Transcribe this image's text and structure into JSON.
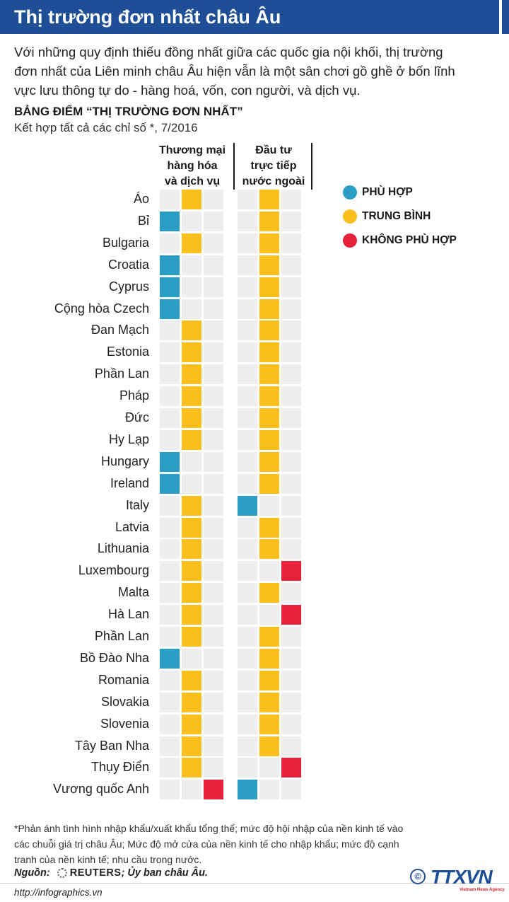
{
  "title": "Thị trường đơn nhất châu Âu",
  "intro": "Với những quy định thiếu đồng nhất giữa các quốc gia nội khối, thị trường đơn nhất của Liên minh châu Âu hiện vẫn là một sân chơi gồ ghề ở bốn lĩnh vực lưu thông tự do - hàng hoá, vốn, con người, và dịch vụ.",
  "chart_data": {
    "type": "table",
    "title": "BẢNG ĐIỂM “THỊ TRƯỜNG ĐƠN NHẤT”",
    "subtitle": "Kết hợp tất cả các chỉ số *, 7/2016",
    "columns": [
      {
        "label_lines": [
          "Thương mại",
          "hàng hóa",
          "và dịch vụ"
        ]
      },
      {
        "label_lines": [
          "Đầu tư",
          "trực tiếp",
          "nước ngoài"
        ]
      }
    ],
    "categories_scale": [
      "PHÙ HỢP",
      "TRUNG BÌNH",
      "KHÔNG PHÙ HỢP"
    ],
    "rows": [
      {
        "country": "Áo",
        "trade": "TRUNG BÌNH",
        "fdi": "TRUNG BÌNH"
      },
      {
        "country": "Bỉ",
        "trade": "PHÙ HỢP",
        "fdi": "TRUNG BÌNH"
      },
      {
        "country": "Bulgaria",
        "trade": "TRUNG BÌNH",
        "fdi": "TRUNG BÌNH"
      },
      {
        "country": "Croatia",
        "trade": "PHÙ HỢP",
        "fdi": "TRUNG BÌNH"
      },
      {
        "country": "Cyprus",
        "trade": "PHÙ HỢP",
        "fdi": "TRUNG BÌNH"
      },
      {
        "country": "Cộng hòa Czech",
        "trade": "PHÙ HỢP",
        "fdi": "TRUNG BÌNH"
      },
      {
        "country": "Đan Mạch",
        "trade": "TRUNG BÌNH",
        "fdi": "TRUNG BÌNH"
      },
      {
        "country": "Estonia",
        "trade": "TRUNG BÌNH",
        "fdi": "TRUNG BÌNH"
      },
      {
        "country": "Phần Lan",
        "trade": "TRUNG BÌNH",
        "fdi": "TRUNG BÌNH"
      },
      {
        "country": "Pháp",
        "trade": "TRUNG BÌNH",
        "fdi": "TRUNG BÌNH"
      },
      {
        "country": "Đức",
        "trade": "TRUNG BÌNH",
        "fdi": "TRUNG BÌNH"
      },
      {
        "country": "Hy Lạp",
        "trade": "TRUNG BÌNH",
        "fdi": "TRUNG BÌNH"
      },
      {
        "country": "Hungary",
        "trade": "PHÙ HỢP",
        "fdi": "TRUNG BÌNH"
      },
      {
        "country": "Ireland",
        "trade": "PHÙ HỢP",
        "fdi": "TRUNG BÌNH"
      },
      {
        "country": "Italy",
        "trade": "TRUNG BÌNH",
        "fdi": "PHÙ HỢP"
      },
      {
        "country": "Latvia",
        "trade": "TRUNG BÌNH",
        "fdi": "TRUNG BÌNH"
      },
      {
        "country": "Lithuania",
        "trade": "TRUNG BÌNH",
        "fdi": "TRUNG BÌNH"
      },
      {
        "country": "Luxembourg",
        "trade": "TRUNG BÌNH",
        "fdi": "KHÔNG PHÙ HỢP"
      },
      {
        "country": "Malta",
        "trade": "TRUNG BÌNH",
        "fdi": "TRUNG BÌNH"
      },
      {
        "country": "Hà Lan",
        "trade": "TRUNG BÌNH",
        "fdi": "KHÔNG PHÙ HỢP"
      },
      {
        "country": "Phần Lan",
        "trade": "TRUNG BÌNH",
        "fdi": "TRUNG BÌNH"
      },
      {
        "country": "Bồ Đào Nha",
        "trade": "PHÙ HỢP",
        "fdi": "TRUNG BÌNH"
      },
      {
        "country": "Romania",
        "trade": "TRUNG BÌNH",
        "fdi": "TRUNG BÌNH"
      },
      {
        "country": "Slovakia",
        "trade": "TRUNG BÌNH",
        "fdi": "TRUNG BÌNH"
      },
      {
        "country": "Slovenia",
        "trade": "TRUNG BÌNH",
        "fdi": "TRUNG BÌNH"
      },
      {
        "country": "Tây Ban Nha",
        "trade": "TRUNG BÌNH",
        "fdi": "TRUNG BÌNH"
      },
      {
        "country": "Thụy Điển",
        "trade": "TRUNG BÌNH",
        "fdi": "KHÔNG PHÙ HỢP"
      },
      {
        "country": "Vương quốc Anh",
        "trade": "KHÔNG PHÙ HỢP",
        "fdi": "PHÙ HỢP"
      }
    ],
    "legend": [
      {
        "label": "PHÙ HỢP",
        "color": "#2b9ec6"
      },
      {
        "label": "TRUNG BÌNH",
        "color": "#fbbf1d"
      },
      {
        "label": "KHÔNG PHÙ HỢP",
        "color": "#e6223a"
      }
    ],
    "empty_color": "#eeeeee"
  },
  "footnote": "*Phản ánh tình hình nhập khẩu/xuất khẩu tổng thể; mức độ hội nhập của nền kinh tế vào các chuỗi giá trị châu Âu; Mức độ mở cửa của nền kinh tế cho nhập khẩu; mức độ cạnh tranh của nền kinh tế; nhu cầu trong nước.",
  "source": {
    "label": "Nguồn:",
    "reuters": "REUTERS",
    "rest": "; Ủy ban châu Âu."
  },
  "url": "http://infographics.vn",
  "logo": {
    "copyright": "©",
    "name": "TTXVN",
    "sub": "Vietnam News Agency"
  },
  "colors": {
    "title_bg": "#1d4e96"
  }
}
